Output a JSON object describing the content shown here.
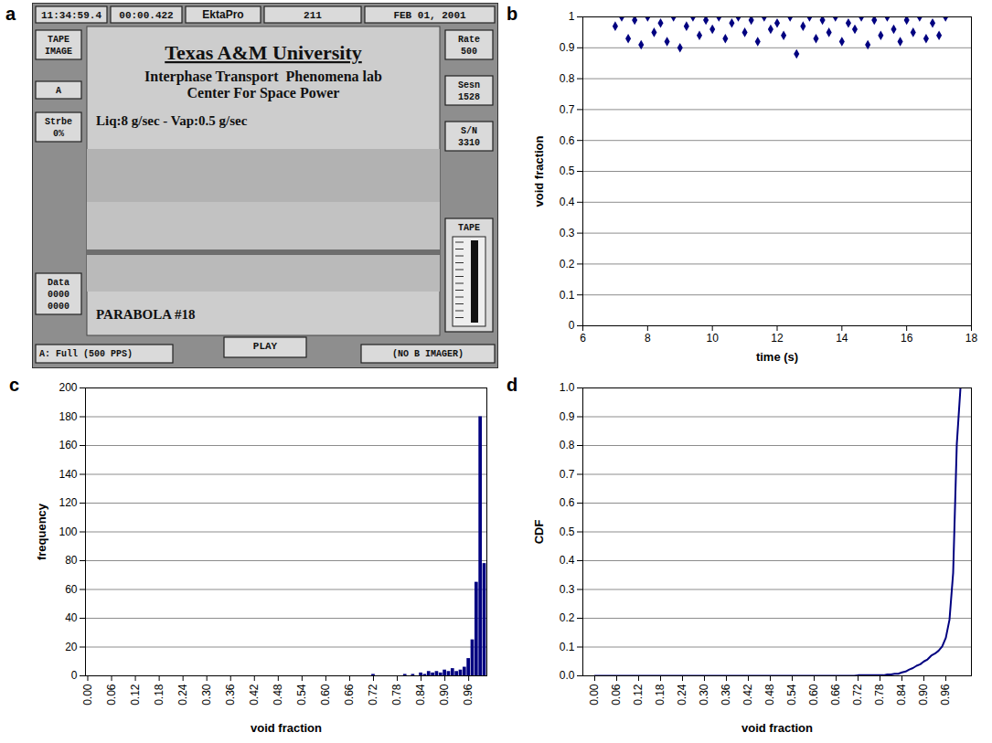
{
  "screenshot": {
    "letter": "a",
    "top_bar": [
      "11:34:59.4",
      "00:00.422",
      "EktaPro",
      "211",
      "FEB 01, 2001"
    ],
    "left_boxes": [
      [
        "TAPE",
        "IMAGE"
      ],
      [
        "A"
      ],
      [
        "Strbe",
        "0%"
      ],
      [
        "Data",
        "0000",
        "0000"
      ]
    ],
    "right_boxes": [
      [
        "Rate",
        "500"
      ],
      [
        "Sesn",
        "1528"
      ],
      [
        "S/N",
        "3310"
      ],
      [
        "TAPE"
      ]
    ],
    "title": "Texas A&M University",
    "subtitle": [
      "Interphase Transport  Phenomena lab",
      "Center For Space Power"
    ],
    "flow": "Liq:8 g/sec - Vap:0.5 g/sec",
    "caption": "PARABOLA #18",
    "button": "PLAY",
    "bottom_left": "A: Full (500 PPS)",
    "bottom_right": "(NO B IMAGER)"
  },
  "chart_data": [
    {
      "letter": "b",
      "type": "scatter",
      "marker": "diamond",
      "color": "#000080",
      "x_label": "time (s)",
      "y_label": "void fraction",
      "x": [
        7.0,
        7.2,
        7.4,
        7.6,
        7.8,
        8.0,
        8.2,
        8.4,
        8.6,
        8.8,
        9.0,
        9.2,
        9.4,
        9.6,
        9.8,
        10.0,
        10.2,
        10.4,
        10.6,
        10.8,
        11.0,
        11.2,
        11.4,
        11.6,
        11.8,
        12.0,
        12.2,
        12.4,
        12.6,
        12.8,
        13.0,
        13.2,
        13.4,
        13.6,
        13.8,
        14.0,
        14.2,
        14.4,
        14.6,
        14.8,
        15.0,
        15.2,
        15.4,
        15.6,
        15.8,
        16.0,
        16.2,
        16.4,
        16.6,
        16.8,
        17.0,
        17.2
      ],
      "values": [
        0.97,
        1.0,
        0.93,
        0.99,
        0.91,
        1.0,
        0.95,
        0.98,
        0.92,
        1.0,
        0.9,
        0.97,
        1.0,
        0.94,
        0.99,
        0.96,
        1.0,
        0.93,
        0.98,
        1.0,
        0.95,
        0.99,
        0.92,
        1.0,
        0.96,
        0.98,
        0.94,
        1.0,
        0.88,
        0.97,
        1.0,
        0.93,
        0.99,
        0.95,
        1.0,
        0.92,
        0.98,
        0.96,
        1.0,
        0.91,
        0.99,
        0.94,
        1.0,
        0.96,
        0.92,
        0.99,
        0.95,
        1.0,
        0.93,
        0.98,
        0.94,
        1.0
      ],
      "xlim": [
        6,
        18
      ],
      "xticks": [
        6,
        8,
        10,
        12,
        14,
        16,
        18
      ],
      "ylim": [
        0,
        1
      ],
      "yticks": [
        0,
        0.1,
        0.2,
        0.3,
        0.4,
        0.5,
        0.6,
        0.7,
        0.8,
        0.9,
        1
      ],
      "grid": true
    },
    {
      "letter": "c",
      "type": "bar",
      "color": "#000080",
      "x_label": "void fraction",
      "y_label": "frequency",
      "categories": [
        "0.00",
        null,
        null,
        null,
        null,
        null,
        "0.06",
        null,
        null,
        null,
        null,
        null,
        "0.12",
        null,
        null,
        null,
        null,
        null,
        "0.18",
        null,
        null,
        null,
        null,
        null,
        "0.24",
        null,
        null,
        null,
        null,
        null,
        "0.30",
        null,
        null,
        null,
        null,
        null,
        "0.36",
        null,
        null,
        null,
        null,
        null,
        "0.42",
        null,
        null,
        null,
        null,
        null,
        "0.48",
        null,
        null,
        null,
        null,
        null,
        "0.54",
        null,
        null,
        null,
        null,
        null,
        "0.60",
        null,
        null,
        null,
        null,
        null,
        "0.66",
        null,
        null,
        null,
        null,
        null,
        "0.72",
        null,
        null,
        null,
        null,
        null,
        "0.78",
        null,
        null,
        null,
        null,
        null,
        "0.84",
        null,
        null,
        null,
        null,
        null,
        "0.90",
        null,
        null,
        null,
        null,
        null,
        "0.96",
        null,
        null,
        null,
        null
      ],
      "values": [
        0,
        0,
        0,
        0,
        0,
        0,
        0,
        0,
        0,
        0,
        0,
        0,
        0,
        0,
        0,
        0,
        0,
        0,
        0,
        0,
        0,
        0,
        0,
        0,
        0,
        0,
        0,
        0,
        0,
        0,
        0,
        0,
        0,
        0,
        0,
        0,
        0,
        0,
        0,
        0,
        0,
        0,
        0,
        0,
        0,
        0,
        0,
        0,
        0,
        0,
        0,
        0,
        0,
        0,
        0,
        0,
        0,
        0,
        0,
        0,
        0,
        0,
        0,
        0,
        0,
        0,
        0,
        0,
        0,
        0,
        0,
        0,
        1,
        0,
        0,
        0,
        0,
        0,
        0,
        0,
        1,
        0,
        1,
        0,
        2,
        1,
        3,
        2,
        3,
        2,
        4,
        3,
        5,
        3,
        4,
        6,
        12,
        25,
        65,
        180,
        78
      ],
      "ylim": [
        0,
        200
      ],
      "yticks": [
        0,
        20,
        40,
        60,
        80,
        100,
        120,
        140,
        160,
        180,
        200
      ],
      "grid": true
    },
    {
      "letter": "d",
      "type": "line",
      "color": "#000080",
      "x_label": "void fraction",
      "y_label": "CDF",
      "categories": [
        "0.00",
        null,
        null,
        null,
        null,
        null,
        "0.06",
        null,
        null,
        null,
        null,
        null,
        "0.12",
        null,
        null,
        null,
        null,
        null,
        "0.18",
        null,
        null,
        null,
        null,
        null,
        "0.24",
        null,
        null,
        null,
        null,
        null,
        "0.30",
        null,
        null,
        null,
        null,
        null,
        "0.36",
        null,
        null,
        null,
        null,
        null,
        "0.42",
        null,
        null,
        null,
        null,
        null,
        "0.48",
        null,
        null,
        null,
        null,
        null,
        "0.54",
        null,
        null,
        null,
        null,
        null,
        "0.60",
        null,
        null,
        null,
        null,
        null,
        "0.66",
        null,
        null,
        null,
        null,
        null,
        "0.72",
        null,
        null,
        null,
        null,
        null,
        "0.78",
        null,
        null,
        null,
        null,
        null,
        "0.84",
        null,
        null,
        null,
        null,
        null,
        "0.90",
        null,
        null,
        null,
        null,
        null,
        "0.96",
        null,
        null,
        null,
        null
      ],
      "values": [
        0,
        0,
        0,
        0,
        0,
        0,
        0,
        0,
        0,
        0,
        0,
        0,
        0,
        0,
        0,
        0,
        0,
        0,
        0,
        0,
        0,
        0,
        0,
        0,
        0,
        0,
        0,
        0,
        0,
        0,
        0,
        0,
        0,
        0,
        0,
        0,
        0,
        0,
        0,
        0,
        0,
        0,
        0,
        0,
        0,
        0,
        0,
        0,
        0,
        0,
        0,
        0,
        0,
        0,
        0,
        0,
        0,
        0,
        0,
        0,
        0,
        0,
        0,
        0,
        0,
        0,
        0,
        0,
        0,
        0,
        0,
        0,
        0.002,
        0.002,
        0.002,
        0.002,
        0.002,
        0.002,
        0.002,
        0.002,
        0.005,
        0.005,
        0.007,
        0.007,
        0.012,
        0.015,
        0.022,
        0.027,
        0.035,
        0.04,
        0.05,
        0.057,
        0.07,
        0.077,
        0.087,
        0.102,
        0.132,
        0.195,
        0.357,
        0.805,
        1.0
      ],
      "ylim": [
        0,
        1
      ],
      "yticks": [
        {
          "value": 0,
          "label": "0.0"
        },
        {
          "value": 0.1,
          "label": "0.1"
        },
        {
          "value": 0.2,
          "label": "0.2"
        },
        {
          "value": 0.3,
          "label": "0.3"
        },
        {
          "value": 0.4,
          "label": "0.4"
        },
        {
          "value": 0.5,
          "label": "0.5"
        },
        {
          "value": 0.6,
          "label": "0.6"
        },
        {
          "value": 0.7,
          "label": "0.7"
        },
        {
          "value": 0.8,
          "label": "0.8"
        },
        {
          "value": 0.9,
          "label": "0.9"
        },
        {
          "value": 1,
          "label": "1.0"
        }
      ],
      "grid": true
    }
  ]
}
